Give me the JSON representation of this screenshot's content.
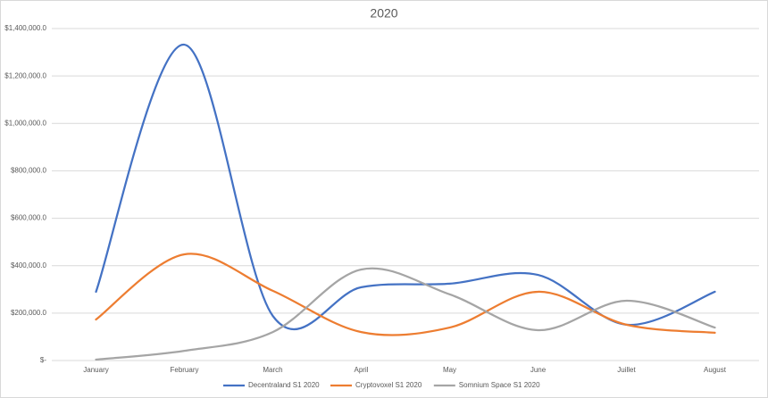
{
  "chart_data": {
    "type": "line",
    "title": "2020",
    "categories": [
      "January",
      "February",
      "March",
      "April",
      "May",
      "June",
      "Juillet",
      "August"
    ],
    "series": [
      {
        "name": "Decentraland S1 2020",
        "color": "#4472c4",
        "values": [
          290000,
          1332000,
          188000,
          309000,
          324000,
          361000,
          151000,
          290000
        ]
      },
      {
        "name": "Cryptovoxel S1 2020",
        "color": "#ed7d31",
        "values": [
          173000,
          448000,
          294000,
          120000,
          139000,
          290000,
          151000,
          117000
        ]
      },
      {
        "name": "Somnium Space S1 2020",
        "color": "#a5a5a5",
        "values": [
          4000,
          41000,
          120000,
          384000,
          279000,
          128000,
          252000,
          139000
        ]
      }
    ],
    "ylim": [
      0,
      1400000
    ],
    "yticks": [
      {
        "value": 0,
        "label": "$-"
      },
      {
        "value": 200000,
        "label": "$200,000.0"
      },
      {
        "value": 400000,
        "label": "$400,000.0"
      },
      {
        "value": 600000,
        "label": "$600,000.0"
      },
      {
        "value": 800000,
        "label": "$800,000.0"
      },
      {
        "value": 1000000,
        "label": "$1,000,000.0"
      },
      {
        "value": 1200000,
        "label": "$1,200,000.0"
      },
      {
        "value": 1400000,
        "label": "$1,400,000.0"
      }
    ],
    "grid": true,
    "smooth": true,
    "legend": "bottom"
  }
}
